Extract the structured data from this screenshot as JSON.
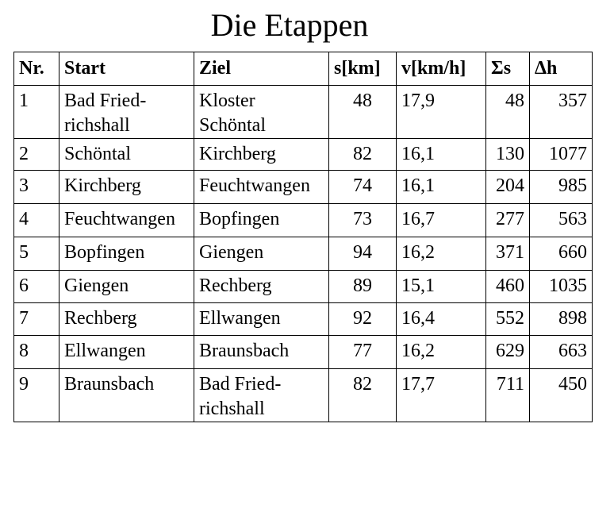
{
  "title": "Die Etappen",
  "table": {
    "header": [
      "Nr.",
      "Start",
      "Ziel",
      "s[km]",
      "v[km/h]",
      "Σs",
      "Δh"
    ],
    "rows": [
      [
        "1",
        "Bad Fried-\nrichshall",
        "Kloster\nSchöntal",
        "48",
        "17,9",
        "48",
        "357"
      ],
      [
        "2",
        "Schöntal",
        "Kirchberg",
        "82",
        "16,1",
        "130",
        "1077"
      ],
      [
        "3",
        "Kirchberg",
        "Feuchtwangen",
        "74",
        "16,1",
        "204",
        "985"
      ],
      [
        "4",
        "Feuchtwangen",
        "Bopfingen",
        "73",
        "16,7",
        "277",
        "563"
      ],
      [
        "5",
        "Bopfingen",
        "Giengen",
        "94",
        "16,2",
        "371",
        "660"
      ],
      [
        "6",
        "Giengen",
        "Rechberg",
        "89",
        "15,1",
        "460",
        "1035"
      ],
      [
        "7",
        "Rechberg",
        "Ellwangen",
        "92",
        "16,4",
        "552",
        "898"
      ],
      [
        "8",
        "Ellwangen",
        "Braunsbach",
        "77",
        "16,2",
        "629",
        "663"
      ],
      [
        "9",
        "Braunsbach",
        "Bad Fried-\nrichshall",
        "82",
        "17,7",
        "711",
        "450"
      ]
    ]
  }
}
